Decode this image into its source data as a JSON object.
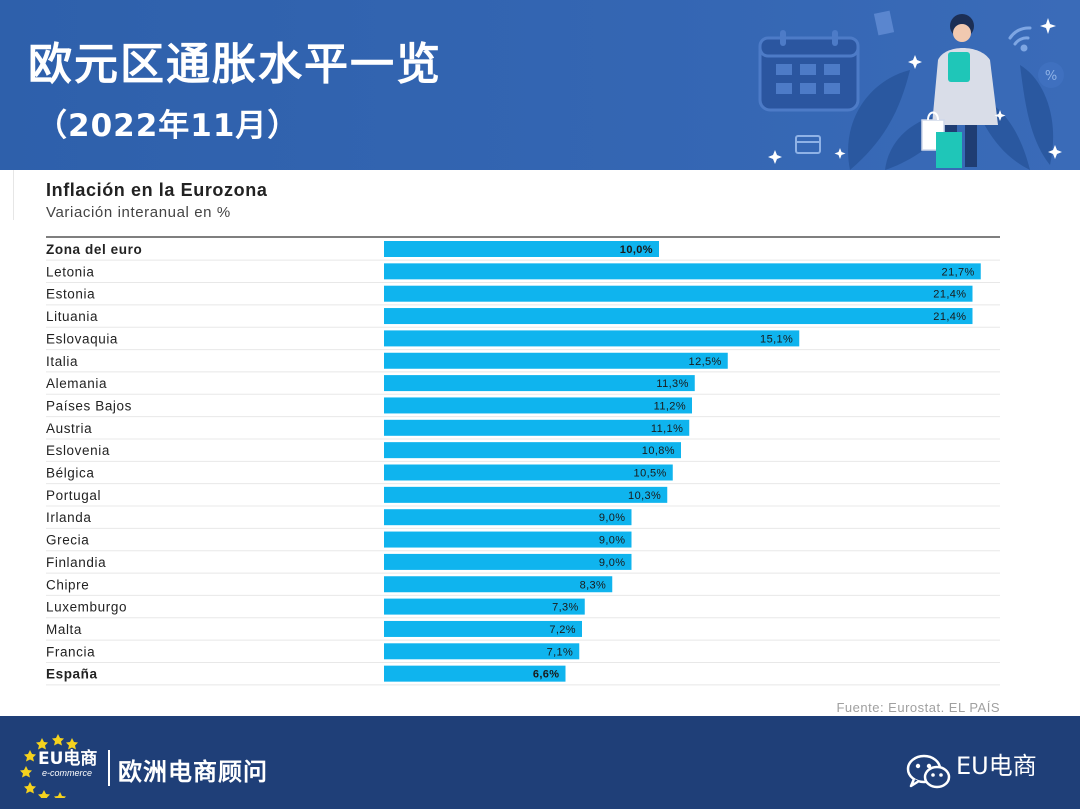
{
  "header": {
    "title": "欧元区通胀水平一览",
    "subtitle": "（2022年11月）"
  },
  "chart_data": {
    "type": "bar",
    "orientation": "horizontal",
    "title": "Inflación en la Eurozona",
    "subtitle": "Variación interanual en %",
    "xlabel": "",
    "ylabel": "",
    "categories": [
      "Zona del euro",
      "Letonia",
      "Estonia",
      "Lituania",
      "Eslovaquia",
      "Italia",
      "Alemania",
      "Países Bajos",
      "Austria",
      "Eslovenia",
      "Bélgica",
      "Portugal",
      "Irlanda",
      "Grecia",
      "Finlandia",
      "Chipre",
      "Luxemburgo",
      "Malta",
      "Francia",
      "España"
    ],
    "values": [
      10.0,
      21.7,
      21.4,
      21.4,
      15.1,
      12.5,
      11.3,
      11.2,
      11.1,
      10.8,
      10.5,
      10.3,
      9.0,
      9.0,
      9.0,
      8.3,
      7.3,
      7.2,
      7.1,
      6.6
    ],
    "value_labels": [
      "10,0%",
      "21,7%",
      "21,4%",
      "21,4%",
      "15,1%",
      "12,5%",
      "11,3%",
      "11,2%",
      "11,1%",
      "10,8%",
      "10,5%",
      "10,3%",
      "9,0%",
      "9,0%",
      "9,0%",
      "8,3%",
      "7,3%",
      "7,2%",
      "7,1%",
      "6,6%"
    ],
    "bold_categories": [
      "Zona del euro",
      "España"
    ],
    "xlim": [
      0,
      22.4
    ],
    "bar_color": "#0fb4ee",
    "grid": false,
    "source": "Fuente: Eurostat. EL PAÍS"
  },
  "footer": {
    "logo_main": "EU电商",
    "logo_small": "e-commerce",
    "brand": "欧洲电商顾问",
    "wechat_label": "EU电商"
  },
  "colors": {
    "header_bg": "#3466b3",
    "footer_bg": "#1f3f78",
    "bar": "#0fb4ee",
    "accent_teal": "#1fc6b8"
  },
  "icons": [
    "calendar-icon",
    "shopping-bags-icon",
    "credit-card-icon",
    "wifi-icon",
    "percent-tag-icon",
    "wechat-icon",
    "star-icon"
  ]
}
